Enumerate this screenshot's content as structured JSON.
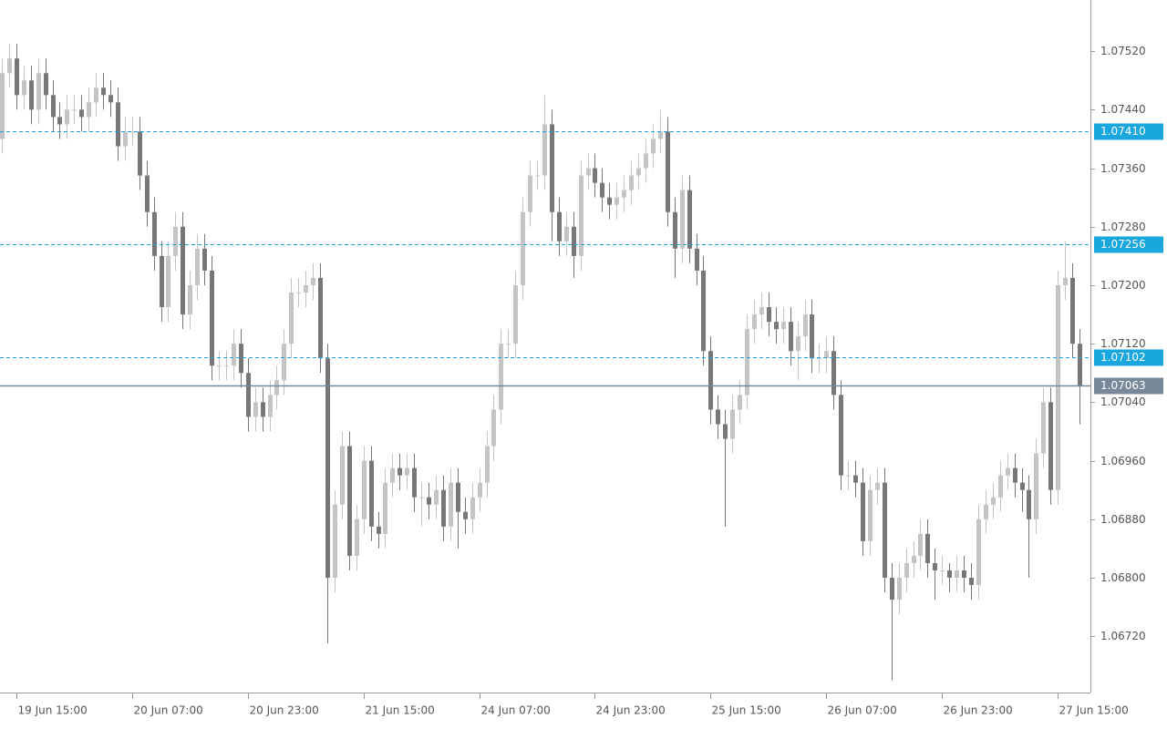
{
  "chart_data": {
    "type": "candlestick",
    "categories": [
      null,
      null,
      "19 Jun 15:00",
      null,
      null,
      null,
      null,
      null,
      null,
      null,
      null,
      null,
      null,
      null,
      null,
      null,
      null,
      null,
      "20 Jun 07:00",
      null,
      null,
      null,
      null,
      null,
      null,
      null,
      null,
      null,
      null,
      null,
      null,
      null,
      null,
      null,
      "20 Jun 23:00",
      null,
      null,
      null,
      null,
      null,
      null,
      null,
      null,
      null,
      null,
      null,
      null,
      null,
      null,
      null,
      "21 Jun 15:00",
      null,
      null,
      null,
      null,
      null,
      null,
      null,
      null,
      null,
      null,
      null,
      null,
      null,
      null,
      null,
      "24 Jun 07:00",
      null,
      null,
      null,
      null,
      null,
      null,
      null,
      null,
      null,
      null,
      null,
      null,
      null,
      null,
      null,
      "24 Jun 23:00",
      null,
      null,
      null,
      null,
      null,
      null,
      null,
      null,
      null,
      null,
      null,
      null,
      null,
      null,
      null,
      "25 Jun 15:00",
      null,
      null,
      null,
      null,
      null,
      null,
      null,
      null,
      null,
      null,
      null,
      null,
      null,
      null,
      null,
      "26 Jun 07:00",
      null,
      null,
      null,
      null,
      null,
      null,
      null,
      null,
      null,
      null,
      null,
      null,
      null,
      null,
      null,
      "26 Jun 23:00",
      null,
      null,
      null,
      null,
      null,
      null,
      null,
      null,
      null,
      null,
      null,
      null,
      null,
      null,
      null,
      "27 Jun 15:00",
      null,
      null,
      null
    ],
    "open": [
      1.074,
      1.0749,
      1.0751,
      1.0746,
      1.0748,
      1.0744,
      1.0749,
      1.0746,
      1.0743,
      1.0742,
      1.0744,
      1.0744,
      1.0743,
      1.0745,
      1.0747,
      1.0746,
      1.0745,
      1.0739,
      1.0741,
      1.0741,
      1.0735,
      1.073,
      1.0724,
      1.0717,
      1.0724,
      1.0728,
      1.0716,
      1.072,
      1.0725,
      1.0722,
      1.0709,
      1.0709,
      1.0709,
      1.0712,
      1.0708,
      1.0702,
      1.0704,
      1.0702,
      1.0705,
      1.0707,
      1.0712,
      1.0719,
      1.0719,
      1.072,
      1.0721,
      1.071,
      1.068,
      1.069,
      1.0698,
      1.0683,
      1.0688,
      1.0696,
      1.0687,
      1.0686,
      1.0693,
      1.0695,
      1.0694,
      1.0695,
      1.0691,
      1.0691,
      1.069,
      1.0692,
      1.0687,
      1.0693,
      1.0689,
      1.0688,
      1.0691,
      1.0693,
      1.0698,
      1.0703,
      1.0712,
      1.0712,
      1.072,
      1.073,
      1.0735,
      1.0735,
      1.0742,
      1.073,
      1.0726,
      1.0728,
      1.0724,
      1.0735,
      1.0736,
      1.0734,
      1.0732,
      1.0731,
      1.0732,
      1.0733,
      1.0735,
      1.0736,
      1.0738,
      1.074,
      1.0741,
      1.073,
      1.0725,
      1.0733,
      1.0725,
      1.0722,
      1.0711,
      1.0703,
      1.0701,
      1.0699,
      1.0703,
      1.0705,
      1.0714,
      1.0716,
      1.0717,
      1.0715,
      1.0714,
      1.0715,
      1.0711,
      1.0713,
      1.0716,
      1.071,
      1.071,
      1.0711,
      1.0705,
      1.0694,
      1.0694,
      1.0693,
      1.0685,
      1.0692,
      1.0693,
      1.068,
      1.0677,
      1.068,
      1.0682,
      1.0683,
      1.0686,
      1.0682,
      1.0681,
      1.0681,
      1.068,
      1.0681,
      1.068,
      1.0679,
      1.0688,
      1.069,
      1.0691,
      1.0694,
      1.0695,
      1.0693,
      1.0692,
      1.0688,
      1.0697,
      1.0704,
      1.0692,
      1.072,
      1.0721,
      1.0712
    ],
    "high": [
      1.0751,
      1.0753,
      1.0753,
      1.075,
      1.075,
      1.0751,
      1.0751,
      1.0748,
      1.0745,
      1.0746,
      1.0746,
      1.0746,
      1.0747,
      1.0749,
      1.0749,
      1.0748,
      1.0747,
      1.0743,
      1.0743,
      1.0743,
      1.0737,
      1.0732,
      1.0726,
      1.0726,
      1.073,
      1.073,
      1.0722,
      1.0727,
      1.0727,
      1.0724,
      1.0711,
      1.0711,
      1.0714,
      1.0714,
      1.071,
      1.0706,
      1.0706,
      1.0707,
      1.0709,
      1.0714,
      1.0721,
      1.0721,
      1.0722,
      1.0723,
      1.0723,
      1.0712,
      1.0692,
      1.07,
      1.07,
      1.069,
      1.0698,
      1.0698,
      1.0689,
      1.0695,
      1.0697,
      1.0697,
      1.0697,
      1.0697,
      1.0693,
      1.0693,
      1.0694,
      1.0694,
      1.0695,
      1.0695,
      1.0691,
      1.0693,
      1.0695,
      1.07,
      1.0705,
      1.0714,
      1.0714,
      1.0722,
      1.0732,
      1.0737,
      1.0737,
      1.0746,
      1.0744,
      1.0732,
      1.073,
      1.073,
      1.0737,
      1.0738,
      1.0738,
      1.0736,
      1.0734,
      1.0734,
      1.0735,
      1.0737,
      1.0738,
      1.074,
      1.0742,
      1.0744,
      1.0743,
      1.0732,
      1.0735,
      1.0735,
      1.0727,
      1.0724,
      1.0713,
      1.0705,
      1.0703,
      1.0705,
      1.0707,
      1.0716,
      1.0718,
      1.0719,
      1.0719,
      1.0717,
      1.0717,
      1.0717,
      1.0715,
      1.0718,
      1.0718,
      1.0712,
      1.0713,
      1.0713,
      1.0707,
      1.0696,
      1.0696,
      1.0695,
      1.0694,
      1.0695,
      1.0695,
      1.0682,
      1.0682,
      1.0684,
      1.0685,
      1.0688,
      1.0688,
      1.0684,
      1.0683,
      1.0682,
      1.0683,
      1.0683,
      1.0682,
      1.069,
      1.0692,
      1.0693,
      1.0696,
      1.0697,
      1.0697,
      1.0695,
      1.0694,
      1.0699,
      1.0706,
      1.0706,
      1.0722,
      1.0726,
      1.0723,
      1.0714
    ],
    "low": [
      1.0738,
      1.0747,
      1.0744,
      1.0744,
      1.0742,
      1.0742,
      1.0744,
      1.0741,
      1.074,
      1.074,
      1.0742,
      1.0741,
      1.0741,
      1.0743,
      1.0744,
      1.0743,
      1.0737,
      1.0737,
      1.0739,
      1.0733,
      1.0728,
      1.0722,
      1.0715,
      1.0715,
      1.0722,
      1.0714,
      1.0714,
      1.0718,
      1.072,
      1.0707,
      1.0707,
      1.0707,
      1.0707,
      1.0706,
      1.07,
      1.07,
      1.07,
      1.07,
      1.0703,
      1.0705,
      1.071,
      1.0717,
      1.0717,
      1.0718,
      1.0708,
      1.0671,
      1.0678,
      1.0688,
      1.0681,
      1.0681,
      1.0686,
      1.0685,
      1.0684,
      1.0684,
      1.0691,
      1.0692,
      1.0692,
      1.0689,
      1.0687,
      1.0688,
      1.0688,
      1.0685,
      1.0685,
      1.0684,
      1.0686,
      1.0686,
      1.0689,
      1.0691,
      1.0696,
      1.0701,
      1.071,
      1.071,
      1.0718,
      1.0728,
      1.0733,
      1.0733,
      1.0726,
      1.0724,
      1.0724,
      1.0721,
      1.0722,
      1.0733,
      1.0732,
      1.073,
      1.0729,
      1.0729,
      1.073,
      1.0731,
      1.0733,
      1.0734,
      1.0736,
      1.0738,
      1.0728,
      1.0721,
      1.0723,
      1.0723,
      1.072,
      1.0709,
      1.0701,
      1.0699,
      1.0687,
      1.0697,
      1.0701,
      1.0703,
      1.0712,
      1.0714,
      1.0713,
      1.0712,
      1.0712,
      1.0709,
      1.0707,
      1.0711,
      1.0708,
      1.0708,
      1.0708,
      1.0703,
      1.0692,
      1.0692,
      1.0691,
      1.0683,
      1.0683,
      1.069,
      1.0678,
      1.0666,
      1.0675,
      1.0678,
      1.068,
      1.0681,
      1.068,
      1.0677,
      1.0679,
      1.0678,
      1.0678,
      1.0678,
      1.0677,
      1.0677,
      1.0686,
      1.0688,
      1.0689,
      1.0692,
      1.0691,
      1.0689,
      1.068,
      1.0686,
      1.0695,
      1.069,
      1.069,
      1.0718,
      1.071,
      1.0701
    ],
    "close": [
      1.0749,
      1.0751,
      1.0746,
      1.0748,
      1.0744,
      1.0749,
      1.0746,
      1.0743,
      1.0742,
      1.0744,
      1.0744,
      1.0743,
      1.0745,
      1.0747,
      1.0746,
      1.0745,
      1.0739,
      1.0741,
      1.0741,
      1.0735,
      1.073,
      1.0724,
      1.0717,
      1.0724,
      1.0728,
      1.0716,
      1.072,
      1.0725,
      1.0722,
      1.0709,
      1.0709,
      1.0709,
      1.0712,
      1.0708,
      1.0702,
      1.0704,
      1.0702,
      1.0705,
      1.0707,
      1.0712,
      1.0719,
      1.0719,
      1.072,
      1.0721,
      1.071,
      1.068,
      1.069,
      1.0698,
      1.0683,
      1.0688,
      1.0696,
      1.0687,
      1.0686,
      1.0693,
      1.0695,
      1.0694,
      1.0695,
      1.0691,
      1.0691,
      1.069,
      1.0692,
      1.0687,
      1.0693,
      1.0689,
      1.0688,
      1.0691,
      1.0693,
      1.0698,
      1.0703,
      1.0712,
      1.0712,
      1.072,
      1.073,
      1.0735,
      1.0735,
      1.0742,
      1.073,
      1.0726,
      1.0728,
      1.0724,
      1.0735,
      1.0736,
      1.0734,
      1.0732,
      1.0731,
      1.0732,
      1.0733,
      1.0735,
      1.0736,
      1.0738,
      1.074,
      1.0741,
      1.073,
      1.0725,
      1.0733,
      1.0725,
      1.0722,
      1.0711,
      1.0703,
      1.0701,
      1.0699,
      1.0703,
      1.0705,
      1.0714,
      1.0716,
      1.0717,
      1.0715,
      1.0714,
      1.0715,
      1.0711,
      1.0713,
      1.0716,
      1.071,
      1.071,
      1.0711,
      1.0705,
      1.0694,
      1.0694,
      1.0693,
      1.0685,
      1.0692,
      1.0693,
      1.068,
      1.0677,
      1.068,
      1.0682,
      1.0683,
      1.0686,
      1.0682,
      1.0681,
      1.0681,
      1.068,
      1.0681,
      1.068,
      1.0679,
      1.0688,
      1.069,
      1.0691,
      1.0694,
      1.0695,
      1.0693,
      1.0692,
      1.0688,
      1.0697,
      1.0704,
      1.0692,
      1.072,
      1.0721,
      1.0712,
      1.07063
    ],
    "up_color": "#c4c4c4",
    "down_color": "#777777",
    "ylim": [
      1.06643,
      1.0759
    ],
    "yticks": [
      {
        "value": 1.0672,
        "label": "1.06720"
      },
      {
        "value": 1.068,
        "label": "1.06800"
      },
      {
        "value": 1.0688,
        "label": "1.06880"
      },
      {
        "value": 1.0696,
        "label": "1.06960"
      },
      {
        "value": 1.0704,
        "label": "1.07040"
      },
      {
        "value": 1.0712,
        "label": "1.07120"
      },
      {
        "value": 1.072,
        "label": "1.07200"
      },
      {
        "value": 1.0728,
        "label": "1.07280"
      },
      {
        "value": 1.0736,
        "label": "1.07360"
      },
      {
        "value": 1.0744,
        "label": "1.07440"
      },
      {
        "value": 1.0752,
        "label": "1.07520"
      }
    ],
    "levels": [
      {
        "value": 1.0741,
        "label": "1.07410"
      },
      {
        "value": 1.07256,
        "label": "1.07256"
      },
      {
        "value": 1.07102,
        "label": "1.07102"
      }
    ],
    "level_color": "#1aa7de",
    "last_price": {
      "value": 1.07063,
      "label": "1.07063"
    },
    "last_price_color": "#778899"
  }
}
